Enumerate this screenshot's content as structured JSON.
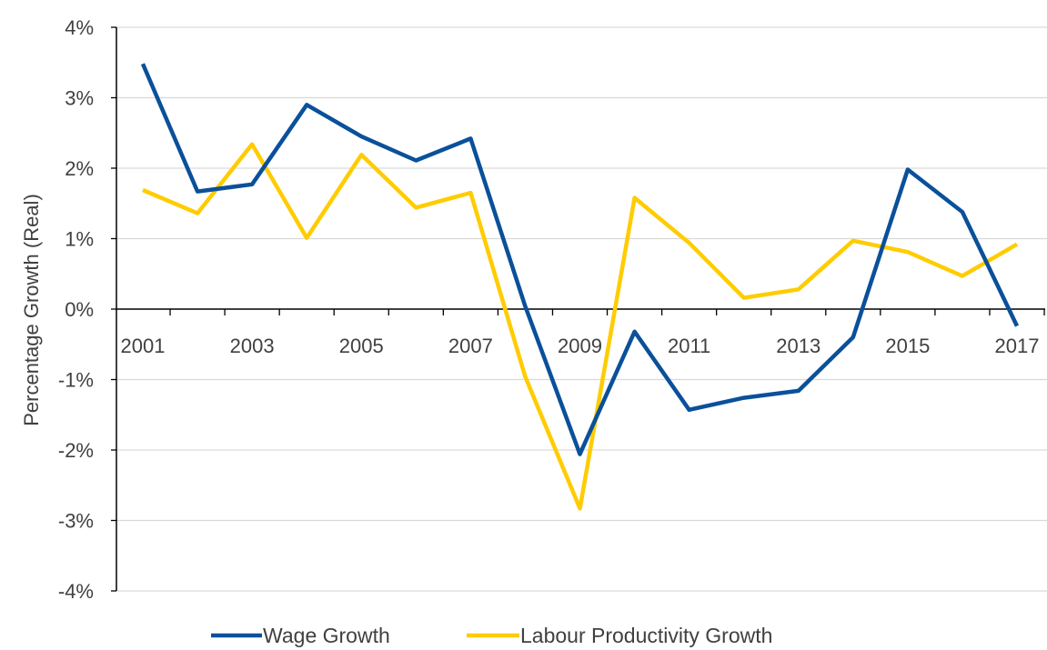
{
  "chart_data": {
    "type": "line",
    "title": "",
    "xlabel": "",
    "ylabel": "Percentage Growth (Real)",
    "x": [
      2001,
      2002,
      2003,
      2004,
      2005,
      2006,
      2007,
      2008,
      2009,
      2010,
      2011,
      2012,
      2013,
      2014,
      2015,
      2016,
      2017
    ],
    "x_tick_labels": [
      "2001",
      "2003",
      "2005",
      "2007",
      "2009",
      "2011",
      "2013",
      "2015",
      "2017"
    ],
    "ylim": [
      -4,
      4
    ],
    "y_tick_labels": [
      "4%",
      "3%",
      "2%",
      "1%",
      "0%",
      "-1%",
      "-2%",
      "-3%",
      "-4%"
    ],
    "y_ticks": [
      4,
      3,
      2,
      1,
      0,
      -1,
      -2,
      -3,
      -4
    ],
    "grid": "horizontal",
    "legend_position": "bottom",
    "series": [
      {
        "name": "Wage Growth",
        "color": "#0A509A",
        "values": [
          3.48,
          1.67,
          1.77,
          2.9,
          2.45,
          2.11,
          2.42,
          0.04,
          -2.06,
          -0.32,
          -1.43,
          -1.26,
          -1.16,
          -0.4,
          1.98,
          1.38,
          -0.24
        ]
      },
      {
        "name": "Labour Productivity Growth",
        "color": "#FFCC00",
        "values": [
          1.69,
          1.36,
          2.34,
          1.01,
          2.19,
          1.44,
          1.65,
          -0.96,
          -2.83,
          1.58,
          0.94,
          0.16,
          0.28,
          0.97,
          0.81,
          0.47,
          0.92
        ]
      }
    ]
  }
}
